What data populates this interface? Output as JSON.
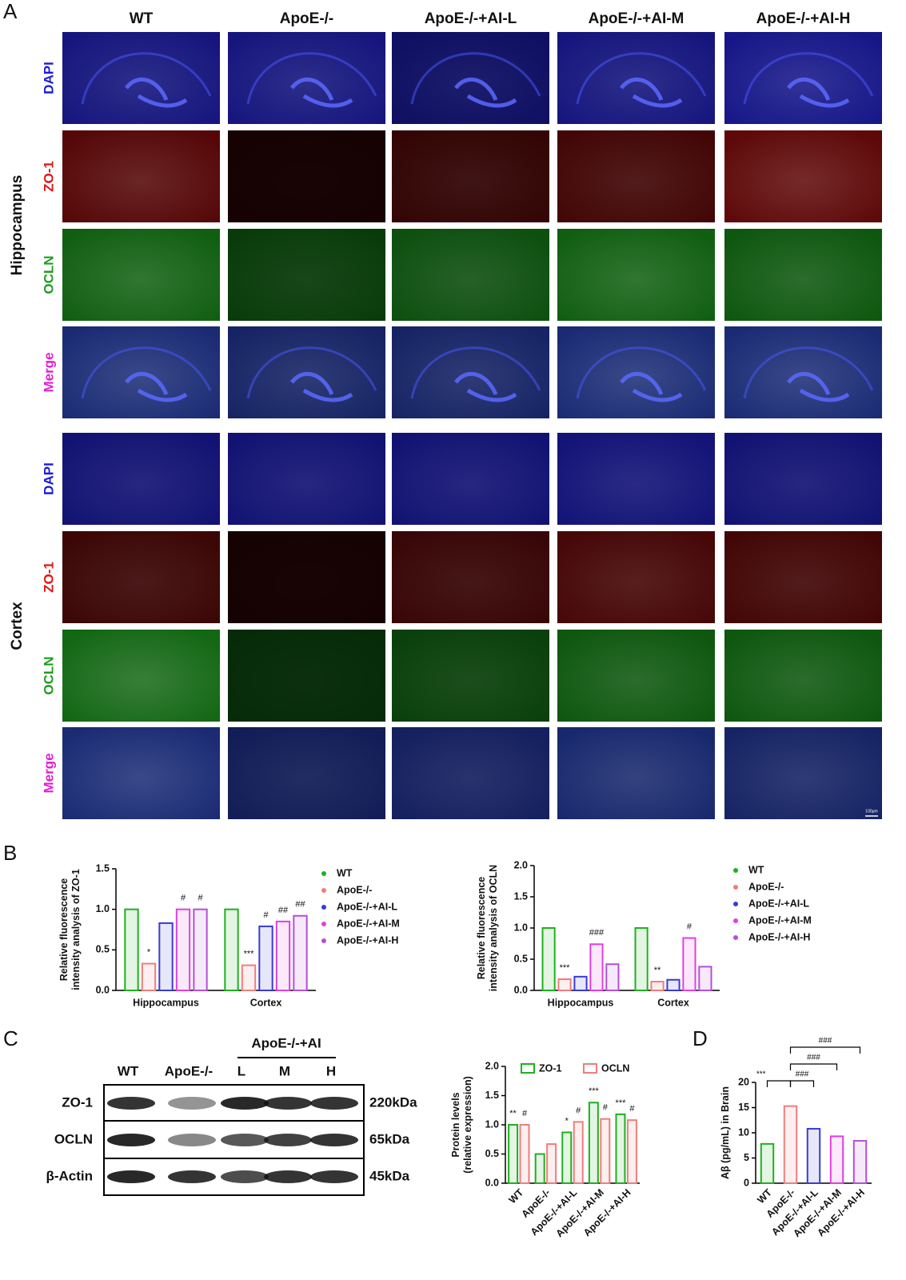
{
  "panel_labels": {
    "a": "A",
    "b": "B",
    "c": "C",
    "d": "D"
  },
  "panel_a": {
    "columns": [
      "WT",
      "ApoE-/-",
      "ApoE-/-+AI-L",
      "ApoE-/-+AI-M",
      "ApoE-/-+AI-H"
    ],
    "regions": [
      {
        "name": "Hippocampus",
        "stains": [
          {
            "label": "DAPI",
            "color": "#1c1cd8"
          },
          {
            "label": "ZO-1",
            "color": "#e01414"
          },
          {
            "label": "OCLN",
            "color": "#1f9e1f"
          },
          {
            "label": "Merge",
            "color": "#e01ed0"
          }
        ]
      },
      {
        "name": "Cortex",
        "stains": [
          {
            "label": "DAPI",
            "color": "#1c1cd8"
          },
          {
            "label": "ZO-1",
            "color": "#e01414"
          },
          {
            "label": "OCLN",
            "color": "#1f9e1f"
          },
          {
            "label": "Merge",
            "color": "#e01ed0"
          }
        ]
      }
    ],
    "scale_bar": "100μm"
  },
  "panel_c_blot": {
    "group_label": "ApoE-/-+AI",
    "lanes": [
      "WT",
      "ApoE-/-",
      "L",
      "M",
      "H"
    ],
    "rows": [
      {
        "protein": "ZO-1",
        "size": "220kDa"
      },
      {
        "protein": "OCLN",
        "size": "65kDa"
      },
      {
        "protein": "β-Actin",
        "size": "45kDa"
      }
    ]
  },
  "chart_data": [
    {
      "type": "bar",
      "ylabel": [
        "Relative fluorescence",
        "intensity analysis of ZO-1"
      ],
      "categories": [
        "Hippocampus",
        "Cortex"
      ],
      "series": [
        {
          "name": "WT",
          "color": "#1fb01f",
          "values": [
            1.0,
            1.0
          ],
          "annotations": [
            null,
            null
          ]
        },
        {
          "name": "ApoE-/-",
          "color": "#f07d7d",
          "values": [
            0.33,
            0.31
          ],
          "annotations": [
            "*",
            "***"
          ]
        },
        {
          "name": "ApoE-/-+AI-L",
          "color": "#3a3ad8",
          "values": [
            0.83,
            0.79
          ],
          "annotations": [
            null,
            "#"
          ]
        },
        {
          "name": "ApoE-/-+AI-M",
          "color": "#e040e0",
          "values": [
            1.0,
            0.85
          ],
          "annotations": [
            "#",
            "##"
          ]
        },
        {
          "name": "ApoE-/-+AI-H",
          "color": "#b44fd8",
          "values": [
            1.0,
            0.92
          ],
          "annotations": [
            "#",
            "##"
          ]
        }
      ],
      "ylim": [
        0,
        1.5
      ],
      "yticks": [
        {
          "value": 0,
          "label": "0.0"
        },
        0.5,
        {
          "value": 1,
          "label": "1.0"
        },
        1.5
      ],
      "legend": "right"
    },
    {
      "type": "bar",
      "ylabel": [
        "Relative fluorescence",
        "intensity analysis of OCLN"
      ],
      "categories": [
        "Hippocampus",
        "Cortex"
      ],
      "series": [
        {
          "name": "WT",
          "color": "#1fb01f",
          "values": [
            1.0,
            1.0
          ],
          "annotations": [
            null,
            null
          ]
        },
        {
          "name": "ApoE-/-",
          "color": "#f07d7d",
          "values": [
            0.18,
            0.14
          ],
          "annotations": [
            "***",
            "**"
          ]
        },
        {
          "name": "ApoE-/-+AI-L",
          "color": "#3a3ad8",
          "values": [
            0.22,
            0.17
          ],
          "annotations": [
            null,
            null
          ]
        },
        {
          "name": "ApoE-/-+AI-M",
          "color": "#e040e0",
          "values": [
            0.74,
            0.84
          ],
          "annotations": [
            "###",
            "#"
          ]
        },
        {
          "name": "ApoE-/-+AI-H",
          "color": "#b44fd8",
          "values": [
            0.42,
            0.38
          ],
          "annotations": [
            null,
            null
          ]
        }
      ],
      "ylim": [
        0,
        2.0
      ],
      "yticks": [
        {
          "value": 0,
          "label": "0.0"
        },
        0.5,
        {
          "value": 1,
          "label": "1.0"
        },
        1.5,
        {
          "value": 2,
          "label": "2.0"
        }
      ],
      "legend": "right"
    },
    {
      "type": "bar",
      "ylabel": [
        "Protein levels",
        "(relative expression)"
      ],
      "categories": [
        "WT",
        "ApoE-/-",
        "ApoE-/-+AI-L",
        "ApoE-/-+AI-M",
        "ApoE-/-+AI-H"
      ],
      "series": [
        {
          "name": "ZO-1",
          "color": "#1fb01f",
          "values": [
            1.0,
            0.5,
            0.87,
            1.38,
            1.18
          ],
          "annotations": [
            "**",
            null,
            "*",
            "***",
            "***"
          ]
        },
        {
          "name": "OCLN",
          "color": "#f07d7d",
          "values": [
            1.0,
            0.67,
            1.05,
            1.1,
            1.08
          ],
          "annotations": [
            "#",
            null,
            "#",
            "#",
            "#"
          ]
        }
      ],
      "ylim": [
        0,
        2.0
      ],
      "yticks": [
        {
          "value": 0,
          "label": "0.0"
        },
        0.5,
        {
          "value": 1,
          "label": "1.0"
        },
        1.5,
        {
          "value": 2,
          "label": "2.0"
        }
      ],
      "legend": "top"
    },
    {
      "type": "bar",
      "ylabel": [
        "Aβ (pg/mL) in Brain"
      ],
      "categories": [
        "WT",
        "ApoE-/-",
        "ApoE-/-+AI-L",
        "ApoE-/-+AI-M",
        "ApoE-/-+AI-H"
      ],
      "values": [
        7.8,
        15.3,
        10.8,
        9.3,
        8.4
      ],
      "colors": [
        "#1fb01f",
        "#f07d7d",
        "#3a3ad8",
        "#e040e0",
        "#b44fd8"
      ],
      "ylim": [
        0,
        20
      ],
      "yticks": [
        0,
        5,
        10,
        15,
        20
      ],
      "comparisons": [
        {
          "label": "***",
          "groups": [
            "WT",
            "ApoE-/-"
          ]
        },
        {
          "label": "###",
          "groups": [
            "ApoE-/-",
            "ApoE-/-+AI-L"
          ]
        },
        {
          "label": "###",
          "groups": [
            "ApoE-/-",
            "ApoE-/-+AI-M"
          ]
        },
        {
          "label": "###",
          "groups": [
            "ApoE-/-",
            "ApoE-/-+AI-H"
          ]
        }
      ]
    }
  ]
}
